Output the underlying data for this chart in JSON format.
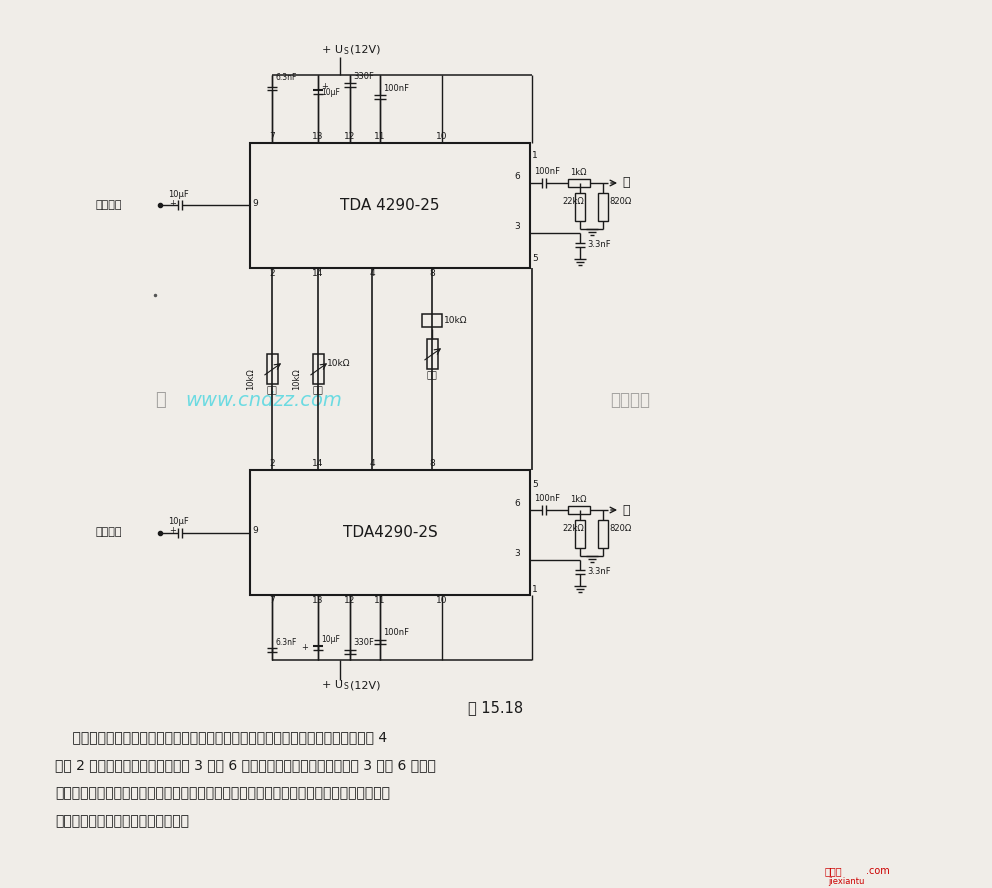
{
  "bg_color": "#f0ede8",
  "title_caption": "图 15.18",
  "description_lines": [
    "    该电路高低音提升或降低的程度以及音量调节与前述电路类似。音量调节部分将脚 4",
    "与脚 2 参考电位点相连，故此时脚 3 和脚 6 处音调降低的程度不同。若在脚 3 和脚 6 间接入",
    "一个同频率有关的网络，则可在其抄头处得到随音量电平不同而不同的输出信号，此信号可",
    "分别控制左右两个声道的音响设备。"
  ],
  "ic1_label": "TDA 4290-25",
  "ic2_label": "TDA4290-2S",
  "watermark_main": "www.cndzz.com",
  "watermark_left": "杭",
  "watermark_right": "有限公司",
  "left_input": "左输入端",
  "right_input": "右输入端",
  "left_out": "左",
  "right_out": "右",
  "footer_red": "接线图",
  "footer_com": ".com",
  "footer_small": "jiexiantu"
}
